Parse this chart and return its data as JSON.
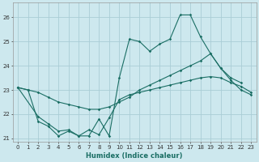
{
  "xlabel": "Humidex (Indice chaleur)",
  "bg_color": "#cde8ee",
  "grid_color": "#aacdd6",
  "line_color": "#1a6e64",
  "xlim": [
    -0.5,
    23.5
  ],
  "ylim": [
    20.85,
    26.6
  ],
  "xticks": [
    0,
    1,
    2,
    3,
    4,
    5,
    6,
    7,
    8,
    9,
    10,
    11,
    12,
    13,
    14,
    15,
    16,
    17,
    18,
    19,
    20,
    21,
    22,
    23
  ],
  "yticks": [
    21,
    22,
    23,
    24,
    25,
    26
  ],
  "line1_x": [
    0,
    1,
    2,
    3,
    4,
    5,
    6,
    7,
    8,
    9,
    10,
    11,
    12,
    13,
    14,
    15,
    16,
    17,
    18,
    19,
    20,
    21,
    22
  ],
  "line1_y": [
    23.1,
    23.0,
    21.7,
    21.5,
    21.1,
    21.3,
    21.1,
    21.1,
    21.8,
    21.1,
    23.5,
    25.1,
    25.0,
    24.6,
    24.9,
    25.1,
    26.1,
    26.1,
    25.2,
    24.5,
    23.9,
    23.5,
    23.3
  ],
  "line2_x": [
    0,
    1,
    2,
    3,
    4,
    5,
    6,
    7,
    8,
    9,
    10,
    11,
    12,
    13,
    14,
    15,
    16,
    17,
    18,
    19,
    20,
    21,
    22,
    23
  ],
  "line2_y": [
    23.1,
    23.0,
    22.9,
    22.7,
    22.5,
    22.4,
    22.3,
    22.2,
    22.2,
    22.3,
    22.5,
    22.7,
    23.0,
    23.2,
    23.4,
    23.6,
    23.8,
    24.0,
    24.2,
    24.5,
    23.9,
    23.4,
    23.0,
    22.8
  ],
  "line3_x": [
    0,
    2,
    3,
    4,
    5,
    6,
    7,
    8,
    9,
    10,
    11,
    12,
    13,
    14,
    15,
    16,
    17,
    18,
    19,
    20,
    21,
    22,
    23
  ],
  "line3_y": [
    23.1,
    21.9,
    21.6,
    21.3,
    21.35,
    21.1,
    21.35,
    21.15,
    21.85,
    22.6,
    22.8,
    22.9,
    23.0,
    23.1,
    23.2,
    23.3,
    23.4,
    23.5,
    23.55,
    23.5,
    23.3,
    23.15,
    22.9
  ],
  "xlabel_fontsize": 6,
  "tick_fontsize": 5,
  "lw": 0.8,
  "ms": 1.8
}
